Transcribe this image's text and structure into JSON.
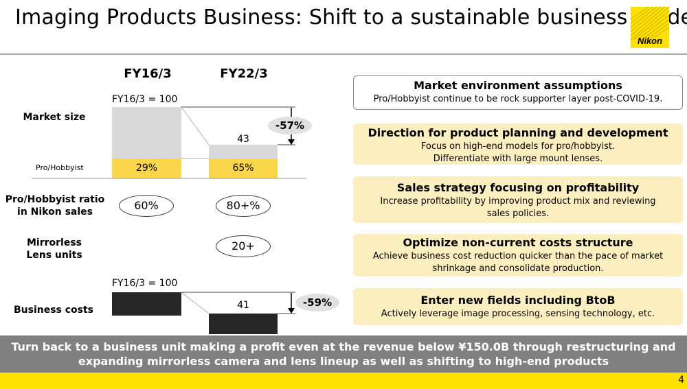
{
  "title": "Imaging Products Business: Shift to a sustainable business model",
  "logo": {
    "text": "Nikon"
  },
  "left": {
    "col1": "FY16/3",
    "col2": "FY22/3",
    "market": {
      "label": "Market size",
      "base_note": "FY16/3 = 100",
      "fy22_value": "43",
      "change": "-57%",
      "segment_label": "Pro/Hobbyist",
      "fy16_pro_share": "29%",
      "fy22_pro_share": "65%"
    },
    "ratio": {
      "label_line1": "Pro/Hobbyist ratio",
      "label_line2": "in Nikon sales",
      "fy16": "60%",
      "fy22": "80+%"
    },
    "mirrorless": {
      "label_line1": "Mirrorless",
      "label_line2": "Lens units",
      "fy22": "20+"
    },
    "costs": {
      "label": "Business costs",
      "base_note": "FY16/3 = 100",
      "fy22_value": "41",
      "change": "-59%"
    }
  },
  "boxes": [
    {
      "title": "Market environment assumptions",
      "lines": [
        "Pro/Hobbyist continue to be rock supporter layer post-COVID-19."
      ]
    },
    {
      "title": "Direction for product planning and development",
      "lines": [
        "Focus on high-end models for pro/hobbyist.",
        "Differentiate with large mount lenses."
      ]
    },
    {
      "title": "Sales strategy focusing on profitability",
      "lines": [
        "Increase profitability by improving product mix and reviewing",
        "sales policies."
      ]
    },
    {
      "title": "Optimize non-current costs structure",
      "lines": [
        "Achieve business cost reduction quicker than the pace of market",
        "shrinkage and consolidate production."
      ]
    },
    {
      "title": "Enter new fields including BtoB",
      "lines": [
        "Actively leverage image processing, sensing technology, etc."
      ]
    }
  ],
  "banner": {
    "line1": "Turn back to a business unit making a profit even at the revenue below ¥150.0B through restructuring and",
    "line2": "expanding mirrorless camera and lens lineup  as well as shifting to high-end products"
  },
  "page_number": "4",
  "colors": {
    "accent_yellow": "#ffe100",
    "bar_gray": "#d9d9d9",
    "pro_yellow": "#f9d64a",
    "box_yellow": "#fbefc0",
    "dark_bar": "#262626",
    "banner_gray": "#808080"
  }
}
